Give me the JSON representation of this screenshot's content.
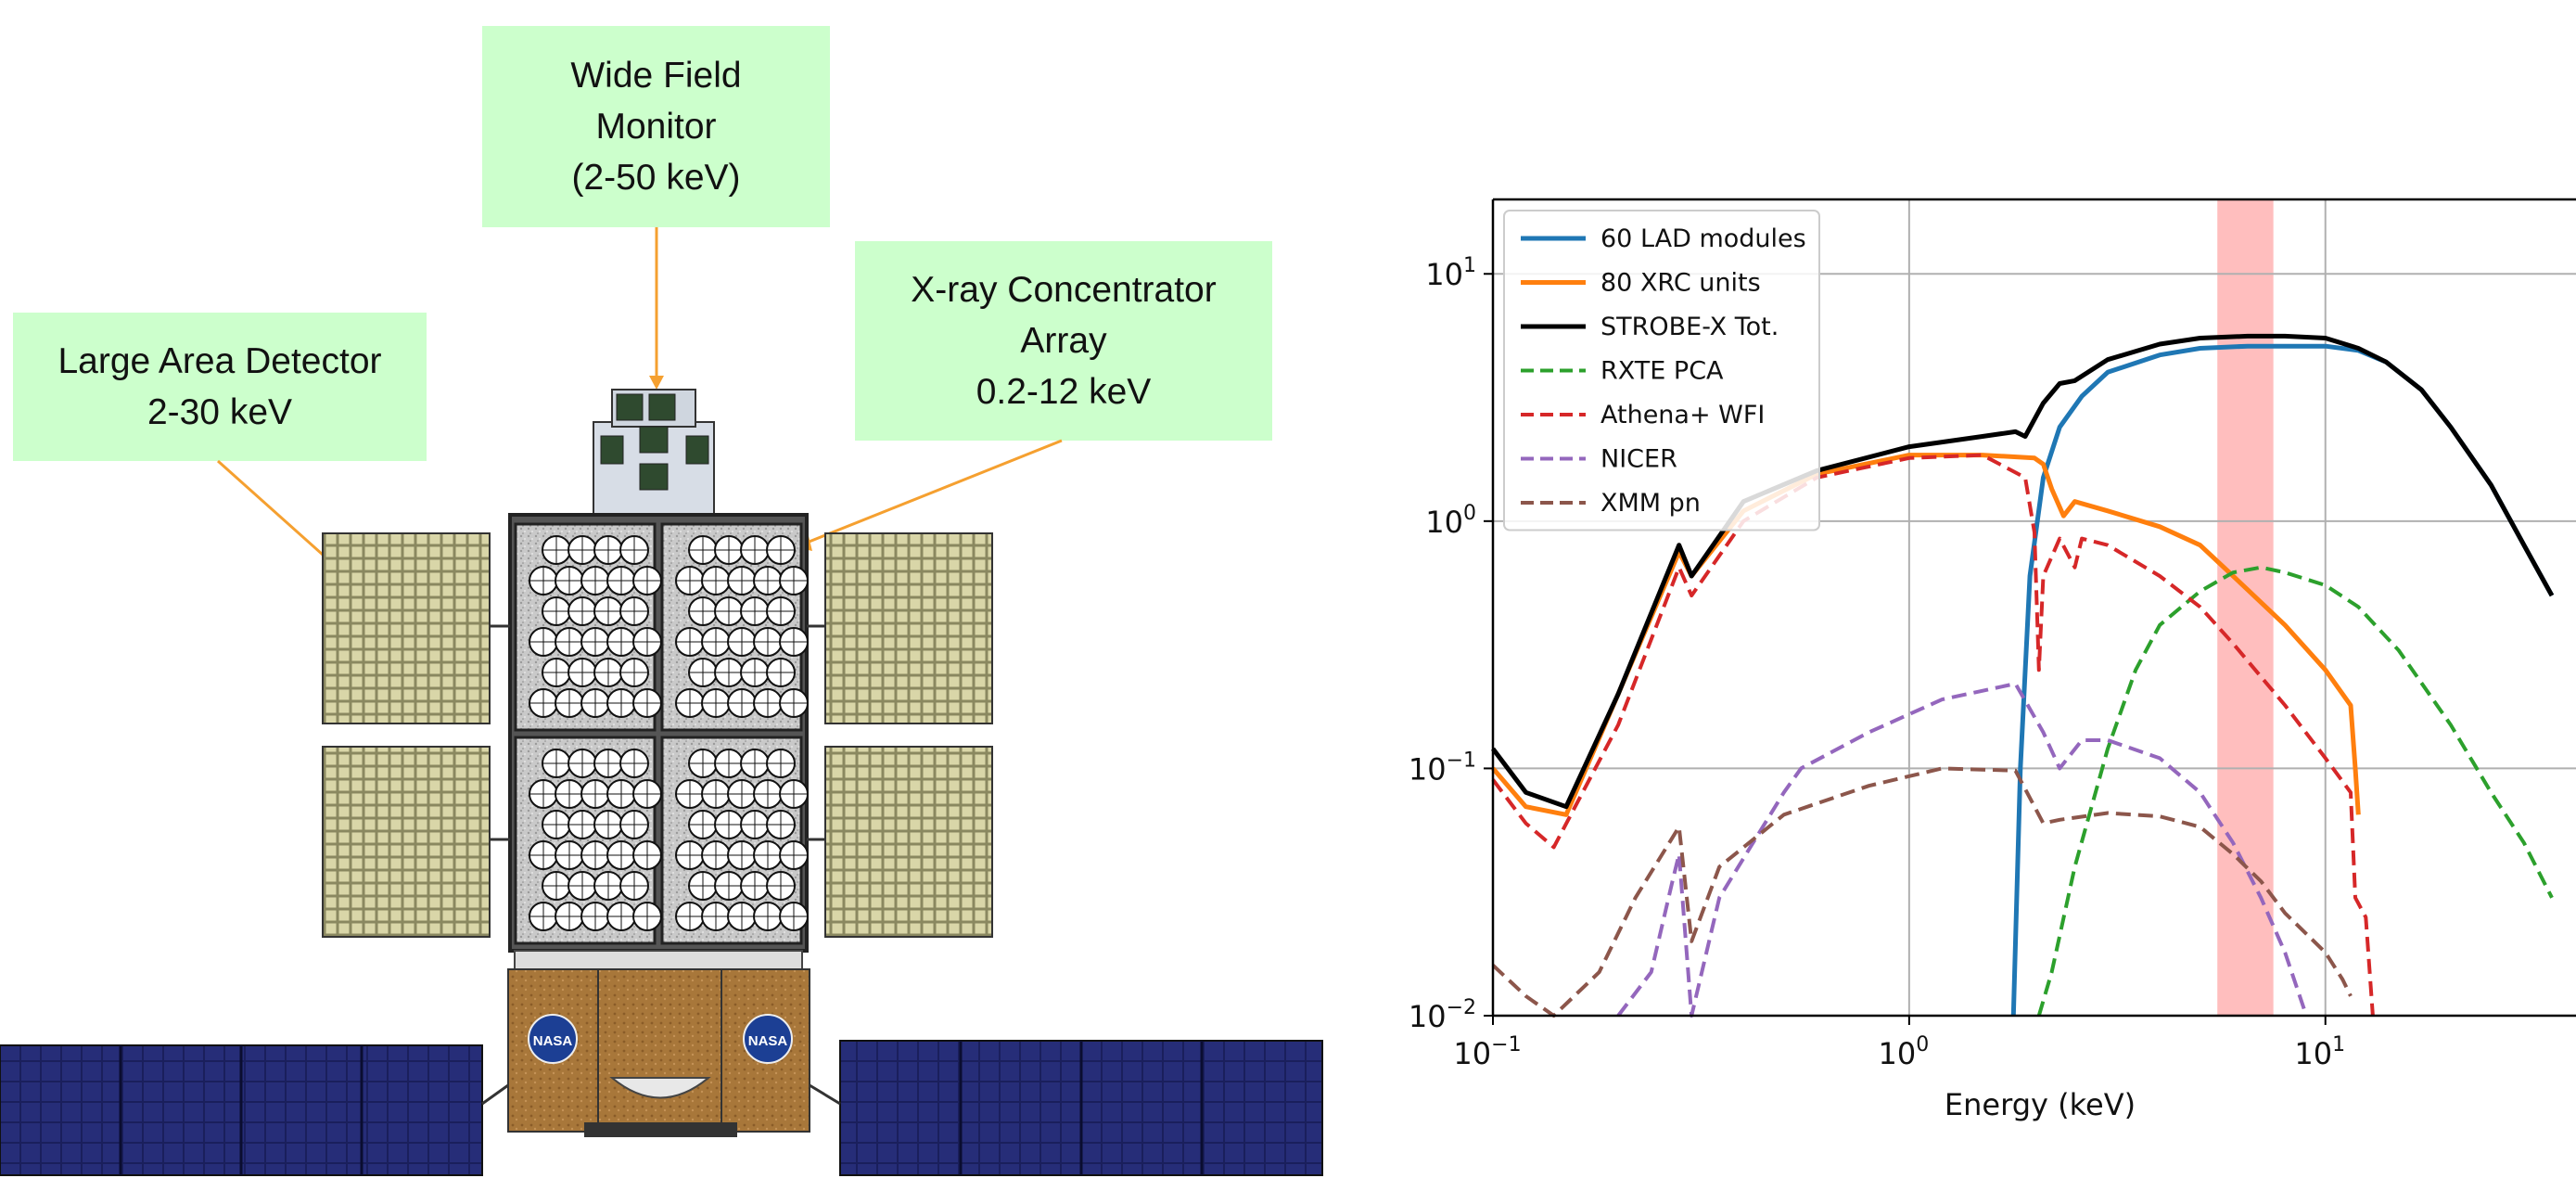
{
  "callouts": {
    "wide_field_monitor": {
      "line1": "Wide Field",
      "line2": "Monitor",
      "line3": "(2-50 keV)"
    },
    "xray_concentrator": {
      "line1": "X-ray Concentrator",
      "line2": "Array",
      "line3": "0.2-12 keV"
    },
    "large_area_detector": {
      "line1": "Large Area Detector",
      "line2": "2-30 keV"
    }
  },
  "spacecraft": {
    "logo_text": "NASA"
  },
  "colors": {
    "callout_fill": "#ccffcc",
    "arrow": "#f5a030",
    "solar_panel": "#1a1f5c",
    "bus_gold": "#a8773a",
    "highlight_band": "#ffb3b3"
  },
  "chart_data": {
    "type": "line",
    "xlabel": "Energy (keV)",
    "ylabel": "",
    "x_scale": "log",
    "y_scale": "log",
    "xlim": [
      0.1,
      40
    ],
    "ylim": [
      0.01,
      20
    ],
    "x_ticks": [
      {
        "value": 0.1,
        "base": "10",
        "exp": "−1"
      },
      {
        "value": 1,
        "base": "10",
        "exp": "0"
      },
      {
        "value": 10,
        "base": "10",
        "exp": "1"
      }
    ],
    "y_ticks": [
      {
        "value": 0.01,
        "base": "10",
        "exp": "−2"
      },
      {
        "value": 0.1,
        "base": "10",
        "exp": "−1"
      },
      {
        "value": 1,
        "base": "10",
        "exp": "0"
      },
      {
        "value": 10,
        "base": "10",
        "exp": "1"
      }
    ],
    "grid": true,
    "legend_position": "top-left",
    "highlight_band": {
      "x0": 5.5,
      "x1": 7.5
    },
    "series": [
      {
        "name": "60 LAD modules",
        "color": "#1f77b4",
        "style": "solid",
        "width": 5,
        "x": [
          1.78,
          1.85,
          1.95,
          2.1,
          2.3,
          2.6,
          3.0,
          4.0,
          5.0,
          6.5,
          8.0,
          10.0,
          12.0,
          14.0,
          17.0,
          20.0,
          25.0,
          30.0,
          35.0
        ],
        "y": [
          0.01,
          0.1,
          0.6,
          1.5,
          2.4,
          3.2,
          4.0,
          4.7,
          5.0,
          5.1,
          5.1,
          5.1,
          4.9,
          4.4,
          3.4,
          2.4,
          1.4,
          0.8,
          0.5
        ]
      },
      {
        "name": "80 XRC units",
        "color": "#ff7f0e",
        "style": "solid",
        "width": 5,
        "x": [
          0.1,
          0.12,
          0.15,
          0.2,
          0.28,
          0.3,
          0.4,
          0.6,
          1.0,
          1.5,
          2.0,
          2.1,
          2.2,
          2.35,
          2.5,
          3.0,
          4.0,
          5.0,
          6.0,
          8.0,
          10.0,
          11.5,
          11.8,
          12.0
        ],
        "y": [
          0.1,
          0.07,
          0.065,
          0.2,
          0.75,
          0.6,
          1.1,
          1.55,
          1.85,
          1.85,
          1.8,
          1.7,
          1.35,
          1.05,
          1.2,
          1.1,
          0.95,
          0.8,
          0.6,
          0.38,
          0.25,
          0.18,
          0.1,
          0.065
        ]
      },
      {
        "name": "STROBE-X Tot.",
        "color": "#000000",
        "style": "solid",
        "width": 5,
        "x": [
          0.1,
          0.12,
          0.15,
          0.2,
          0.28,
          0.3,
          0.4,
          0.6,
          1.0,
          1.5,
          1.8,
          1.9,
          2.1,
          2.3,
          2.5,
          3.0,
          4.0,
          5.0,
          6.5,
          8.0,
          10.0,
          12.0,
          14.0,
          17.0,
          20.0,
          25.0,
          30.0,
          35.0
        ],
        "y": [
          0.12,
          0.08,
          0.07,
          0.2,
          0.8,
          0.6,
          1.2,
          1.6,
          2.0,
          2.2,
          2.3,
          2.2,
          3.0,
          3.6,
          3.7,
          4.5,
          5.2,
          5.5,
          5.6,
          5.6,
          5.5,
          5.0,
          4.4,
          3.4,
          2.4,
          1.4,
          0.8,
          0.5
        ]
      },
      {
        "name": "RXTE PCA",
        "color": "#2ca02c",
        "style": "dashed",
        "width": 4,
        "x": [
          2.05,
          2.2,
          2.5,
          3.0,
          3.5,
          4.0,
          5.0,
          6.0,
          7.0,
          8.0,
          10.0,
          12.0,
          15.0,
          20.0,
          25.0,
          30.0,
          35.0
        ],
        "y": [
          0.01,
          0.015,
          0.04,
          0.12,
          0.25,
          0.38,
          0.52,
          0.62,
          0.65,
          0.62,
          0.55,
          0.45,
          0.3,
          0.15,
          0.08,
          0.05,
          0.03
        ]
      },
      {
        "name": "Athena+ WFI",
        "color": "#d62728",
        "style": "dashed",
        "width": 4,
        "x": [
          0.1,
          0.12,
          0.14,
          0.2,
          0.28,
          0.3,
          0.4,
          0.6,
          1.0,
          1.5,
          1.9,
          2.0,
          2.05,
          2.1,
          2.3,
          2.5,
          2.6,
          3.0,
          4.0,
          5.0,
          6.0,
          8.0,
          10.0,
          11.5,
          11.8,
          12.5,
          13.0
        ],
        "y": [
          0.09,
          0.06,
          0.048,
          0.15,
          0.65,
          0.5,
          1.0,
          1.5,
          1.8,
          1.85,
          1.5,
          0.9,
          0.25,
          0.6,
          0.85,
          0.65,
          0.85,
          0.8,
          0.6,
          0.45,
          0.32,
          0.18,
          0.11,
          0.08,
          0.03,
          0.025,
          0.01
        ]
      },
      {
        "name": "NICER",
        "color": "#9467bd",
        "style": "dashed",
        "width": 4,
        "x": [
          0.2,
          0.24,
          0.27,
          0.28,
          0.3,
          0.35,
          0.5,
          0.55,
          0.8,
          1.2,
          1.8,
          2.1,
          2.3,
          2.6,
          3.0,
          4.0,
          5.0,
          6.0,
          7.0,
          8.0,
          9.0
        ],
        "y": [
          0.01,
          0.015,
          0.035,
          0.045,
          0.01,
          0.03,
          0.08,
          0.1,
          0.14,
          0.19,
          0.22,
          0.14,
          0.1,
          0.13,
          0.13,
          0.11,
          0.08,
          0.05,
          0.03,
          0.018,
          0.01
        ]
      },
      {
        "name": "XMM pn",
        "color": "#8c564b",
        "style": "dashed",
        "width": 4,
        "x": [
          0.1,
          0.12,
          0.14,
          0.18,
          0.22,
          0.28,
          0.3,
          0.35,
          0.5,
          0.8,
          1.2,
          1.8,
          2.1,
          2.3,
          3.0,
          4.0,
          5.0,
          6.0,
          7.0,
          8.0,
          10.0,
          11.0,
          11.5
        ],
        "y": [
          0.016,
          0.012,
          0.01,
          0.015,
          0.03,
          0.058,
          0.02,
          0.04,
          0.065,
          0.085,
          0.1,
          0.098,
          0.06,
          0.062,
          0.066,
          0.064,
          0.058,
          0.045,
          0.035,
          0.026,
          0.018,
          0.014,
          0.012
        ]
      }
    ]
  }
}
